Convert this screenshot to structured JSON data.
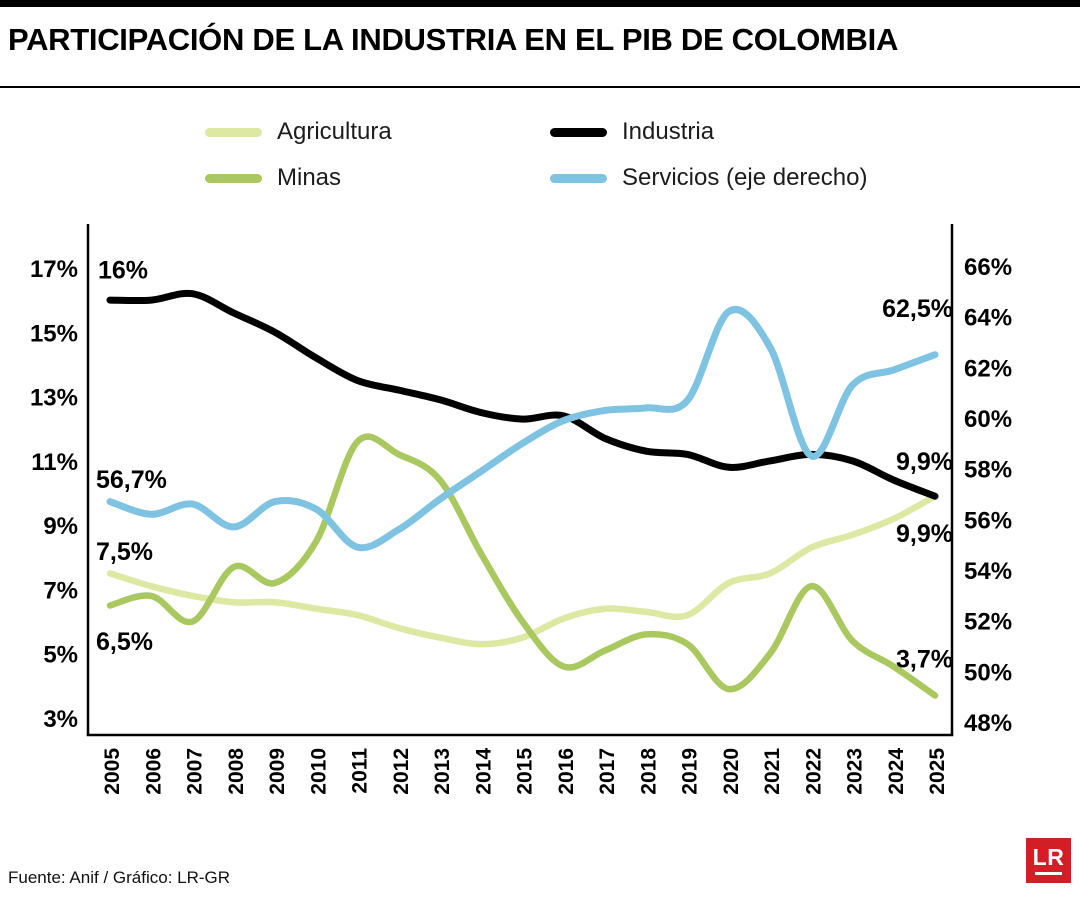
{
  "title": "PARTICIPACIÓN DE LA INDUSTRIA EN EL PIB DE COLOMBIA",
  "footer": {
    "source": "Fuente: Anif / Gráfico: LR-GR",
    "logo": "LR"
  },
  "colors": {
    "agricultura": "#dde8a3",
    "minas": "#a9c85f",
    "industria": "#000000",
    "servicios": "#7fc3e2",
    "logo_red": "#d21f26"
  },
  "legend": [
    {
      "label": "Agricultura",
      "color": "#dde8a3"
    },
    {
      "label": "Industria",
      "color": "#000000"
    },
    {
      "label": "Minas",
      "color": "#a9c85f"
    },
    {
      "label": "Servicios (eje derecho)",
      "color": "#7fc3e2"
    }
  ],
  "chart_data": {
    "type": "line",
    "title": "PARTICIPACIÓN DE LA INDUSTRIA EN EL PIB DE COLOMBIA",
    "x": [
      2005,
      2006,
      2007,
      2008,
      2009,
      2010,
      2011,
      2012,
      2013,
      2014,
      2015,
      2016,
      2017,
      2018,
      2019,
      2020,
      2021,
      2022,
      2023,
      2024,
      2025
    ],
    "left_axis": {
      "ticks": [
        17,
        15,
        13,
        11,
        9,
        7,
        5,
        3
      ],
      "min": 3,
      "max": 17,
      "unit": "%"
    },
    "right_axis": {
      "ticks": [
        66,
        64,
        62,
        60,
        58,
        56,
        54,
        52,
        50,
        48
      ],
      "min": 48,
      "max": 66,
      "unit": "%"
    },
    "series": [
      {
        "name": "Agricultura",
        "axis": "left",
        "color": "#dde8a3",
        "width": 6.5,
        "values": [
          7.5,
          7.1,
          6.8,
          6.6,
          6.6,
          6.4,
          6.2,
          5.8,
          5.5,
          5.3,
          5.5,
          6.1,
          6.4,
          6.3,
          6.2,
          7.2,
          7.5,
          8.3,
          8.7,
          9.2,
          9.9
        ]
      },
      {
        "name": "Minas",
        "axis": "left",
        "color": "#a9c85f",
        "width": 6.5,
        "values": [
          6.5,
          6.8,
          6.0,
          7.7,
          7.2,
          8.5,
          11.6,
          11.2,
          10.4,
          8.1,
          6.0,
          4.6,
          5.1,
          5.6,
          5.3,
          3.9,
          5.0,
          7.1,
          5.4,
          4.6,
          3.7
        ]
      },
      {
        "name": "Industria",
        "axis": "left",
        "color": "#000000",
        "width": 7,
        "values": [
          16.0,
          16.0,
          16.2,
          15.6,
          15.0,
          14.2,
          13.5,
          13.2,
          12.9,
          12.5,
          12.3,
          12.4,
          11.7,
          11.3,
          11.2,
          10.8,
          11.0,
          11.2,
          11.0,
          10.4,
          9.9
        ]
      },
      {
        "name": "Servicios (eje derecho)",
        "axis": "right",
        "color": "#7fc3e2",
        "width": 7,
        "values": [
          56.7,
          56.2,
          56.6,
          55.7,
          56.7,
          56.4,
          54.9,
          55.6,
          56.8,
          57.9,
          59.0,
          59.9,
          60.3,
          60.4,
          60.7,
          64.2,
          62.8,
          58.5,
          61.3,
          61.9,
          62.5
        ]
      }
    ],
    "annotations": [
      {
        "text": "16%",
        "year": 2005,
        "axis": "left",
        "v": 16.95,
        "anchor": "start",
        "dx": -12
      },
      {
        "text": "56,7%",
        "year": 2005,
        "axis": "right",
        "v": 57.6,
        "anchor": "start",
        "dx": -14
      },
      {
        "text": "7,5%",
        "year": 2005,
        "axis": "left",
        "v": 8.2,
        "anchor": "start",
        "dx": -14
      },
      {
        "text": "6,5%",
        "year": 2005,
        "axis": "left",
        "v": 5.4,
        "anchor": "start",
        "dx": -14
      },
      {
        "text": "62,5%",
        "year": 2025,
        "axis": "right",
        "v": 64.35,
        "anchor": "end",
        "dx": 18
      },
      {
        "text": "9,9%",
        "year": 2025,
        "axis": "left",
        "v": 11.0,
        "anchor": "end",
        "dx": 18
      },
      {
        "text": "9,9%",
        "year": 2025,
        "axis": "left",
        "v": 8.75,
        "anchor": "end",
        "dx": 18
      },
      {
        "text": "3,7%",
        "year": 2025,
        "axis": "left",
        "v": 4.85,
        "anchor": "end",
        "dx": 18
      }
    ]
  }
}
